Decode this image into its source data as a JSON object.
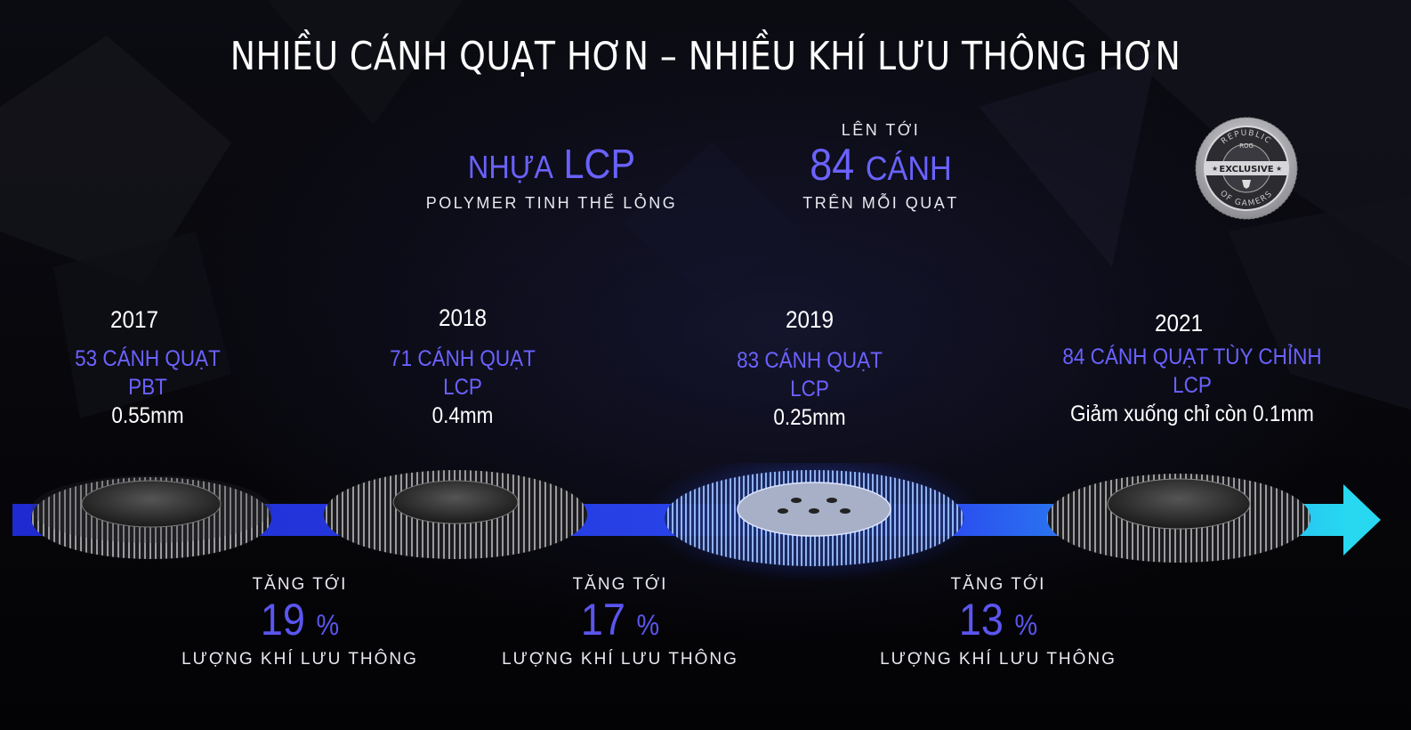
{
  "title": "NHIỀU CÁNH QUẠT HƠN – NHIỀU KHÍ LƯU THÔNG HƠN",
  "material": {
    "prefix": "NHỰA",
    "name": "LCP",
    "subtitle": "POLYMER TINH THỂ LỎNG"
  },
  "fins": {
    "pre": "LÊN TỚI",
    "number": "84",
    "unit": "CÁNH",
    "post": "TRÊN MỖI QUẠT"
  },
  "badge": {
    "top": "REPUBLIC",
    "brand": "ROG",
    "center": "EXCLUSIVE",
    "bottom": "OF GAMERS"
  },
  "generations": [
    {
      "year": "2017",
      "blades": "53 CÁNH QUẠT",
      "material": "PBT",
      "thickness": "0.55mm"
    },
    {
      "year": "2018",
      "blades": "71 CÁNH QUẠT",
      "material": "LCP",
      "thickness": "0.4mm"
    },
    {
      "year": "2019",
      "blades": "83 CÁNH QUẠT",
      "material": "LCP",
      "thickness": "0.25mm"
    },
    {
      "year": "2021",
      "blades": "84 CÁNH QUẠT TÙY CHỈNH",
      "material": "LCP",
      "thickness": "Giảm xuống chỉ còn 0.1mm"
    }
  ],
  "gains": [
    {
      "label": "TĂNG TỚI",
      "value": "19",
      "unit": "%",
      "footer": "LƯỢNG KHÍ LƯU THÔNG"
    },
    {
      "label": "TĂNG TỚI",
      "value": "17",
      "unit": "%",
      "footer": "LƯỢNG KHÍ LƯU THÔNG"
    },
    {
      "label": "TĂNG TỚI",
      "value": "13",
      "unit": "%",
      "footer": "LƯỢNG KHÍ LƯU THÔNG"
    }
  ],
  "colors": {
    "accent": "#6a62ff",
    "arrow_start": "#2230d8",
    "arrow_end": "#27d8f0",
    "badge_silver": "#b9b9bd"
  }
}
